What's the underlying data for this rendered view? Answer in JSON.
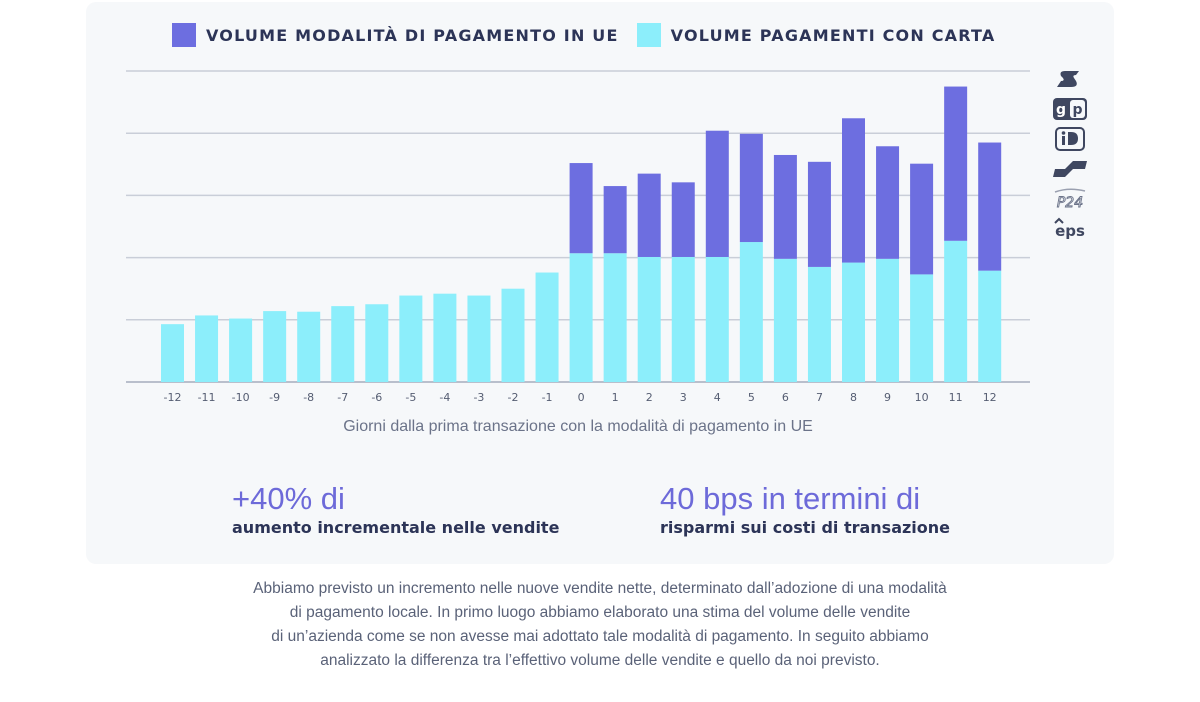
{
  "chart_data": {
    "type": "bar",
    "stacked": true,
    "categories": [
      "-12",
      "-11",
      "-10",
      "-9",
      "-8",
      "-7",
      "-6",
      "-5",
      "-4",
      "-3",
      "-2",
      "-1",
      "0",
      "1",
      "2",
      "3",
      "4",
      "5",
      "6",
      "7",
      "8",
      "9",
      "10",
      "11",
      "12"
    ],
    "series": [
      {
        "name": "VOLUME PAGAMENTI CON CARTA",
        "color": "#8ceefb",
        "values": [
          93,
          107,
          102,
          114,
          113,
          122,
          125,
          139,
          142,
          139,
          150,
          176,
          207,
          207,
          201,
          201,
          201,
          225,
          198,
          185,
          192,
          198,
          173,
          227,
          179
        ]
      },
      {
        "name": "VOLUME MODALITÀ DI PAGAMENTO IN UE",
        "color": "#6d6ee0",
        "values": [
          0,
          0,
          0,
          0,
          0,
          0,
          0,
          0,
          0,
          0,
          0,
          0,
          145,
          108,
          134,
          120,
          203,
          174,
          167,
          169,
          232,
          181,
          178,
          248,
          206
        ]
      }
    ],
    "xlabel": "Giorni dalla prima transazione con la modalità di pagamento in UE",
    "ylabel": "",
    "ylim": [
      0,
      500
    ],
    "gridlines": [
      0,
      100,
      200,
      300,
      400,
      500
    ],
    "legend": "top",
    "grid": true
  },
  "stats": [
    {
      "value": "+40% di",
      "label": "aumento incrementale nelle vendite"
    },
    {
      "value": "40 bps in termini di",
      "label": "risparmi sui costi di transazione"
    }
  ],
  "caption_lines": [
    "Abbiamo previsto un incremento nelle nuove vendite nette, determinato dall’adozione di una modalità",
    "di pagamento locale. In primo luogo abbiamo elaborato una stima del volume delle vendite",
    "di un’azienda come se non avesse mai adottato tale modalità di pagamento. In seguito abbiamo",
    "analizzato la differenza tra l’effettivo volume delle vendite e quello da noi previsto."
  ],
  "logos": [
    {
      "icon": "sofort-logo-icon",
      "text": "S"
    },
    {
      "icon": "giropay-logo-icon",
      "text": "gp"
    },
    {
      "icon": "ideal-logo-icon",
      "text": "iD"
    },
    {
      "icon": "bancontact-logo-icon",
      "text": ""
    },
    {
      "icon": "p24-logo-icon",
      "text": "P24"
    },
    {
      "icon": "eps-logo-icon",
      "text": "eps"
    }
  ],
  "colors": {
    "eu_method": "#6d6ee0",
    "card": "#8ceefb",
    "accent_text": "#6d6ad9",
    "dark_text": "#2c3457"
  }
}
